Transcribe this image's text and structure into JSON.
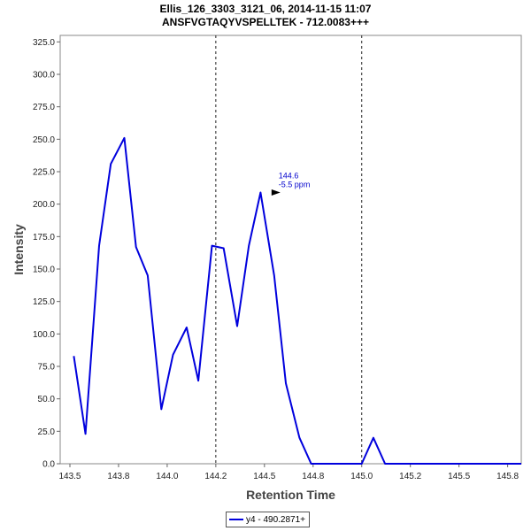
{
  "chart_data": {
    "type": "line",
    "title": "Ellis_126_3303_3121_06, 2014-11-15 11:07",
    "subtitle": "ANSFVGTAQYVSPELLTEK - 712.0083+++",
    "xlabel": "Retention Time",
    "ylabel": "Intensity",
    "xlim": [
      143.45,
      145.82
    ],
    "ylim": [
      0,
      330
    ],
    "x_ticks": [
      "143.5",
      "143.8",
      "144.0",
      "144.2",
      "144.5",
      "144.8",
      "145.0",
      "145.2",
      "145.5",
      "145.8"
    ],
    "x_tick_values": [
      143.5,
      143.75,
      144.0,
      144.25,
      144.5,
      144.75,
      145.0,
      145.25,
      145.5,
      145.75
    ],
    "y_ticks": [
      "0.0",
      "25.0",
      "50.0",
      "75.0",
      "100.0",
      "125.0",
      "150.0",
      "175.0",
      "200.0",
      "225.0",
      "250.0",
      "275.0",
      "300.0",
      "325.0"
    ],
    "y_tick_values": [
      0,
      25,
      50,
      75,
      100,
      125,
      150,
      175,
      200,
      225,
      250,
      275,
      300,
      325
    ],
    "vertical_markers": [
      144.25,
      145.0
    ],
    "legend_position": "bottom",
    "series": [
      {
        "name": "y4 - 490.2871+",
        "color": "#0000dd",
        "x": [
          143.52,
          143.58,
          143.65,
          143.71,
          143.78,
          143.84,
          143.9,
          143.97,
          144.03,
          144.1,
          144.16,
          144.23,
          144.29,
          144.36,
          144.42,
          144.48,
          144.55,
          144.61,
          144.68,
          144.74,
          144.81,
          144.87,
          144.93,
          145.0,
          145.06,
          145.12,
          145.19,
          145.25,
          145.31,
          145.38,
          145.44,
          145.5,
          145.57,
          145.63,
          145.69,
          145.76,
          145.82
        ],
        "y": [
          83,
          23,
          168,
          231,
          251,
          167,
          145,
          42,
          84,
          105,
          64,
          168,
          166,
          106,
          168,
          209,
          145,
          62,
          20,
          0,
          0,
          0,
          0,
          0,
          20,
          0,
          0,
          0,
          0,
          0,
          0,
          0,
          0,
          0,
          0,
          0,
          0
        ]
      }
    ],
    "annotations": [
      {
        "x": 144.6,
        "y": 209,
        "lines": [
          "144.6",
          "-5.5 ppm"
        ]
      }
    ]
  }
}
